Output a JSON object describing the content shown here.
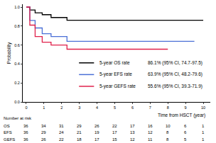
{
  "chart_data": {
    "type": "line",
    "line_style": "step",
    "xlabel": "Time from HSCT (year)",
    "ylabel": "Probability",
    "x": [
      0,
      0.2,
      0.5,
      0.9,
      1.4,
      2.3,
      8,
      9.5,
      10
    ],
    "series": [
      {
        "name": "5-year OS rate",
        "ci_text": "86.1% (95% CI, 74.7-97.5)",
        "color": "#000000",
        "values": [
          1,
          0.97,
          0.94,
          0.92,
          0.89,
          0.861,
          0.861,
          0.861,
          0.861
        ]
      },
      {
        "name": "5-year EFS rate",
        "ci_text": "63.9% (95% CI, 48.2-79.6)",
        "color": "#4a6fd6",
        "values": [
          1,
          0.86,
          0.78,
          0.72,
          0.69,
          0.639,
          0.639,
          0.639,
          null
        ]
      },
      {
        "name": "5-year GEFS rate",
        "ci_text": "55.6% (95% CI, 39.3-71.9)",
        "color": "#e0204a",
        "values": [
          1,
          0.81,
          0.69,
          0.63,
          0.6,
          0.556,
          0.556,
          null,
          null
        ]
      }
    ],
    "xlim": [
      -0.2,
      10.4
    ],
    "xticks": [
      0,
      1,
      2,
      3,
      4,
      5,
      6,
      7,
      8,
      9,
      10
    ],
    "ylim": [
      0,
      1.03
    ],
    "yticks": [
      {
        "value": 0,
        "label": "0.0"
      },
      0.2,
      0.4,
      0.6,
      0.8,
      {
        "value": 1,
        "label": "1.0"
      }
    ],
    "grid": false,
    "risk_table": {
      "title": "Number at risk",
      "times": [
        0,
        1,
        2,
        3,
        4,
        5,
        6,
        7,
        8,
        9,
        10
      ],
      "rows": [
        {
          "label": "OS",
          "values": [
            36,
            34,
            31,
            29,
            26,
            22,
            17,
            16,
            10,
            6,
            1
          ]
        },
        {
          "label": "EFS",
          "values": [
            36,
            29,
            24,
            21,
            19,
            17,
            13,
            12,
            8,
            6,
            1
          ]
        },
        {
          "label": "GEFS",
          "values": [
            36,
            26,
            22,
            18,
            17,
            15,
            12,
            11,
            8,
            5,
            1
          ]
        }
      ]
    }
  }
}
